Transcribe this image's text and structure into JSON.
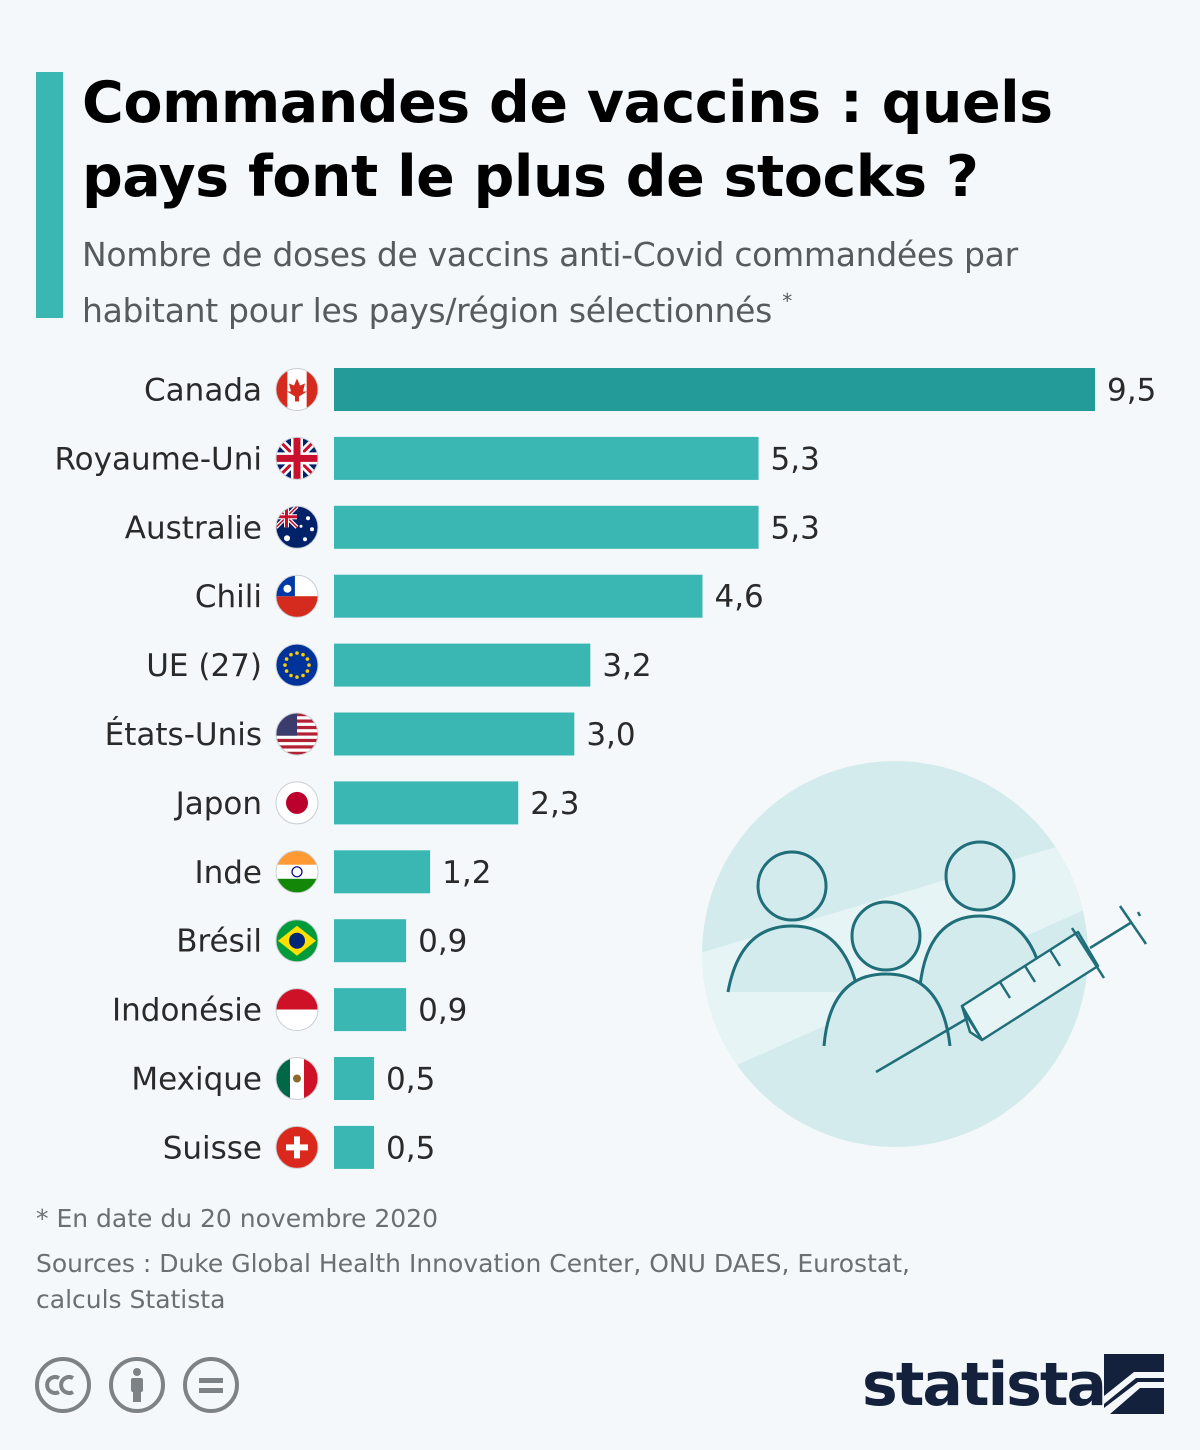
{
  "title": "Commandes de vaccins : quels pays font le plus de stocks ?",
  "subtitle": "Nombre de doses de vaccins anti-Covid commandées par habitant pour les pays/région sélectionnés",
  "subtitle_mark": "*",
  "colors": {
    "accent": "#3ab7b3",
    "highlight": "#239b98",
    "bar": "#3ab7b3",
    "background": "#f4f8fb",
    "illustration_bg": "#d4ebee",
    "illustration_line": "#1f6e79",
    "logo": "#13213d"
  },
  "chart_data": {
    "type": "bar",
    "orientation": "horizontal",
    "categories": [
      "Canada",
      "Royaume-Uni",
      "Australie",
      "Chili",
      "UE (27)",
      "États-Unis",
      "Japon",
      "Inde",
      "Brésil",
      "Indonésie",
      "Mexique",
      "Suisse"
    ],
    "values": [
      9.5,
      5.3,
      5.3,
      4.6,
      3.2,
      3.0,
      2.3,
      1.2,
      0.9,
      0.9,
      0.5,
      0.5
    ],
    "value_labels": [
      "9,5",
      "5,3",
      "5,3",
      "4,6",
      "3,2",
      "3,0",
      "2,3",
      "1,2",
      "0,9",
      "0,9",
      "0,5",
      "0,5"
    ],
    "flags": [
      "canada-flag",
      "uk-flag",
      "australia-flag",
      "chile-flag",
      "eu-flag",
      "usa-flag",
      "japan-flag",
      "india-flag",
      "brazil-flag",
      "indonesia-flag",
      "mexico-flag",
      "switzerland-flag"
    ],
    "highlighted": [
      "Canada"
    ],
    "xlim": [
      0,
      9.5
    ],
    "grid": false,
    "legend": "none",
    "title": "Commandes de vaccins : quels pays font le plus de stocks ?",
    "xlabel": "",
    "ylabel": ""
  },
  "footnote": "* En date du 20 novembre 2020",
  "sources": "Sources : Duke Global Health Innovation Center, ONU DAES, Eurostat, calculs Statista",
  "license_icons": [
    "cc-icon",
    "attribution-icon",
    "no-derivatives-icon"
  ],
  "brand": "statista"
}
